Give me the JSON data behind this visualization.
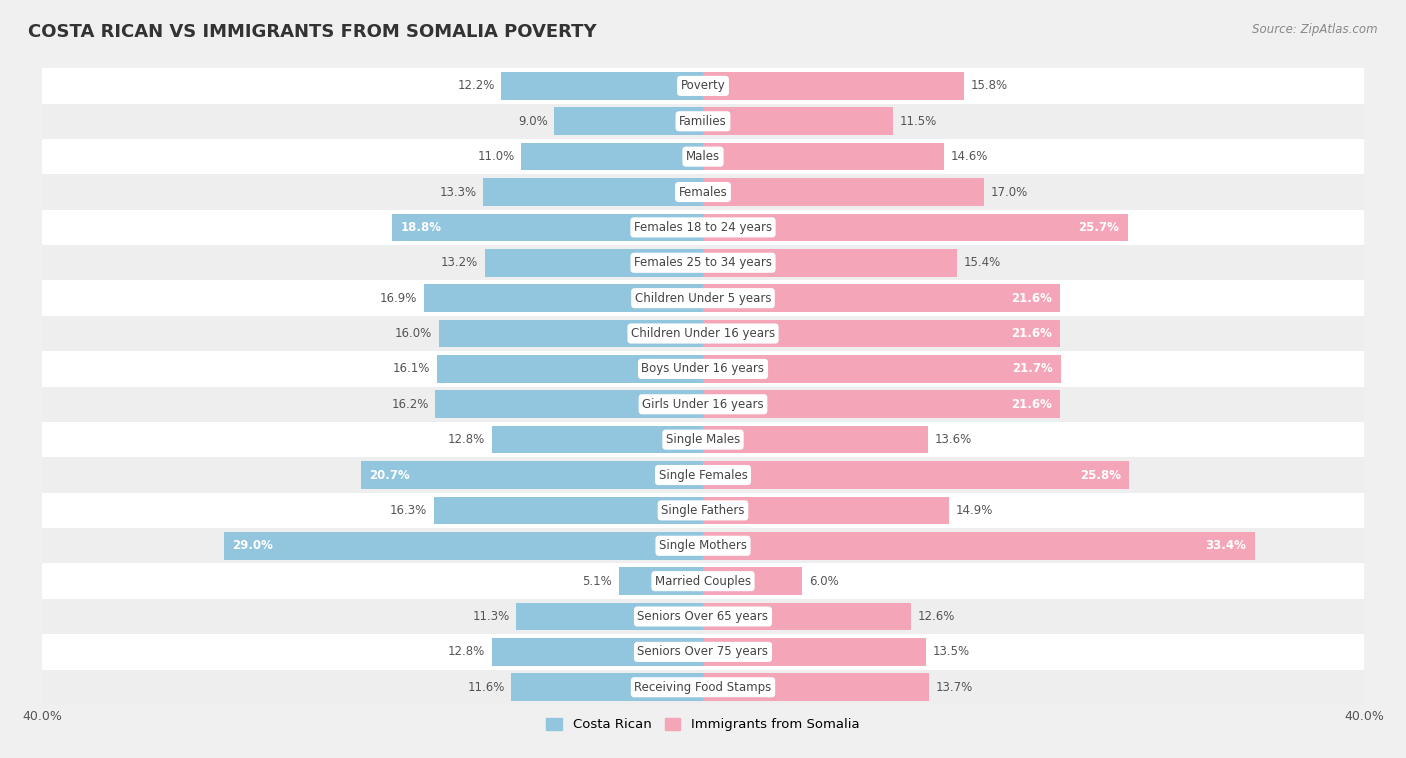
{
  "title": "COSTA RICAN VS IMMIGRANTS FROM SOMALIA POVERTY",
  "source": "Source: ZipAtlas.com",
  "categories": [
    "Poverty",
    "Families",
    "Males",
    "Females",
    "Females 18 to 24 years",
    "Females 25 to 34 years",
    "Children Under 5 years",
    "Children Under 16 years",
    "Boys Under 16 years",
    "Girls Under 16 years",
    "Single Males",
    "Single Females",
    "Single Fathers",
    "Single Mothers",
    "Married Couples",
    "Seniors Over 65 years",
    "Seniors Over 75 years",
    "Receiving Food Stamps"
  ],
  "costa_rican": [
    12.2,
    9.0,
    11.0,
    13.3,
    18.8,
    13.2,
    16.9,
    16.0,
    16.1,
    16.2,
    12.8,
    20.7,
    16.3,
    29.0,
    5.1,
    11.3,
    12.8,
    11.6
  ],
  "somalia": [
    15.8,
    11.5,
    14.6,
    17.0,
    25.7,
    15.4,
    21.6,
    21.6,
    21.7,
    21.6,
    13.6,
    25.8,
    14.9,
    33.4,
    6.0,
    12.6,
    13.5,
    13.7
  ],
  "costa_rican_color": "#92c5de",
  "somalia_color": "#f4a6b8",
  "costa_rican_label": "Costa Rican",
  "somalia_label": "Immigrants from Somalia",
  "xlim": 40.0,
  "row_colors": [
    "#ffffff",
    "#eeeeee"
  ],
  "title_fontsize": 13,
  "label_fontsize": 8.5,
  "value_fontsize": 8.5,
  "axis_fontsize": 9,
  "inside_threshold_cr": 18.0,
  "inside_threshold_som": 18.0
}
